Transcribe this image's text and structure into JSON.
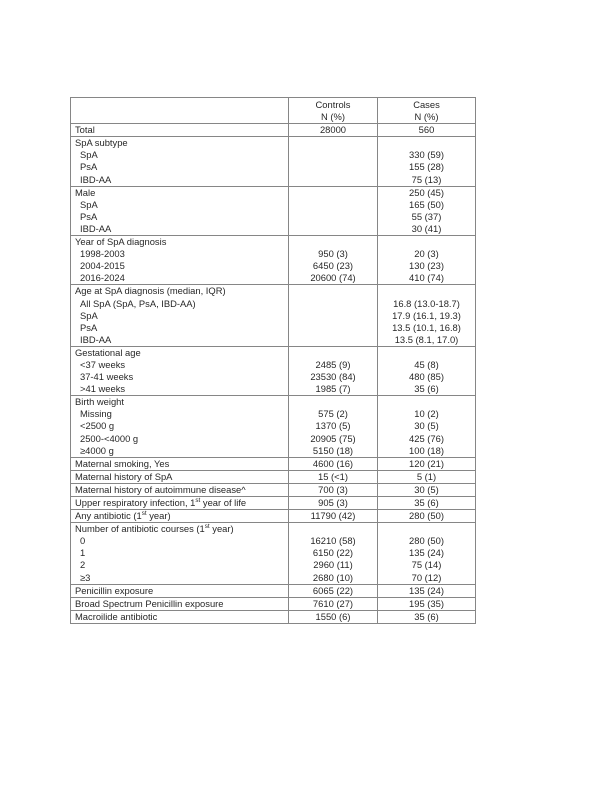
{
  "colors": {
    "page_bg": "#ffffff",
    "border": "#868686",
    "text": "#272727"
  },
  "table": {
    "columns": [
      {
        "key": "label",
        "header": "",
        "subheader": ""
      },
      {
        "key": "controls",
        "header": "Controls",
        "subheader": "N (%)"
      },
      {
        "key": "cases",
        "header": "Cases",
        "subheader": "N (%)"
      }
    ],
    "rows": [
      {
        "label": "Total",
        "controls": "28000",
        "cases": "560",
        "indent": 0,
        "section_start": true
      },
      {
        "label": "SpA subtype",
        "controls": "",
        "cases": "",
        "indent": 0,
        "section_start": true
      },
      {
        "label": "SpA",
        "controls": "",
        "cases": "330 (59)",
        "indent": 1,
        "section_start": false
      },
      {
        "label": "PsA",
        "controls": "",
        "cases": "155 (28)",
        "indent": 1,
        "section_start": false
      },
      {
        "label": "IBD-AA",
        "controls": "",
        "cases": "75 (13)",
        "indent": 1,
        "section_start": false
      },
      {
        "label": "Male",
        "controls": "",
        "cases": "250 (45)",
        "indent": 0,
        "section_start": true
      },
      {
        "label": "SpA",
        "controls": "",
        "cases": "165 (50)",
        "indent": 1,
        "section_start": false
      },
      {
        "label": "PsA",
        "controls": "",
        "cases": "55 (37)",
        "indent": 1,
        "section_start": false
      },
      {
        "label": "IBD-AA",
        "controls": "",
        "cases": "30 (41)",
        "indent": 1,
        "section_start": false
      },
      {
        "label": "Year of SpA diagnosis",
        "controls": "",
        "cases": "",
        "indent": 0,
        "section_start": true
      },
      {
        "label": "1998-2003",
        "controls": "950 (3)",
        "cases": "20 (3)",
        "indent": 1,
        "section_start": false
      },
      {
        "label": "2004-2015",
        "controls": "6450 (23)",
        "cases": "130 (23)",
        "indent": 1,
        "section_start": false
      },
      {
        "label": "2016-2024",
        "controls": "20600 (74)",
        "cases": "410 (74)",
        "indent": 1,
        "section_start": false
      },
      {
        "label": "Age at SpA diagnosis (median, IQR)",
        "controls": "",
        "cases": "",
        "indent": 0,
        "section_start": true
      },
      {
        "label": "All SpA (SpA, PsA, IBD-AA)",
        "controls": "",
        "cases": "16.8 (13.0-18.7)",
        "indent": 1,
        "section_start": false
      },
      {
        "label": "SpA",
        "controls": "",
        "cases": "17.9 (16.1, 19.3)",
        "indent": 1,
        "section_start": false
      },
      {
        "label": "PsA",
        "controls": "",
        "cases": "13.5 (10.1, 16.8)",
        "indent": 1,
        "section_start": false
      },
      {
        "label": "IBD-AA",
        "controls": "",
        "cases": "13.5 (8.1, 17.0)",
        "indent": 1,
        "section_start": false
      },
      {
        "label": "Gestational age",
        "controls": "",
        "cases": "",
        "indent": 0,
        "section_start": true
      },
      {
        "label": "<37 weeks",
        "controls": "2485 (9)",
        "cases": "45 (8)",
        "indent": 1,
        "section_start": false
      },
      {
        "label": "37-41 weeks",
        "controls": "23530 (84)",
        "cases": "480 (85)",
        "indent": 1,
        "section_start": false
      },
      {
        "label": ">41 weeks",
        "controls": "1985 (7)",
        "cases": "35 (6)",
        "indent": 1,
        "section_start": false
      },
      {
        "label": "Birth weight",
        "controls": "",
        "cases": "",
        "indent": 0,
        "section_start": true
      },
      {
        "label": "Missing",
        "controls": "575 (2)",
        "cases": "10 (2)",
        "indent": 1,
        "section_start": false
      },
      {
        "label": "<2500 g",
        "controls": "1370 (5)",
        "cases": "30 (5)",
        "indent": 1,
        "section_start": false
      },
      {
        "label": "2500-<4000 g",
        "controls": "20905 (75)",
        "cases": "425 (76)",
        "indent": 1,
        "section_start": false
      },
      {
        "label": "≥4000 g",
        "controls": "5150 (18)",
        "cases": "100 (18)",
        "indent": 1,
        "section_start": false
      },
      {
        "label": "Maternal smoking, Yes",
        "controls": "4600 (16)",
        "cases": "120 (21)",
        "indent": 0,
        "section_start": true
      },
      {
        "label": "Maternal history of SpA",
        "controls": "15 (<1)",
        "cases": "5 (1)",
        "indent": 0,
        "section_start": true
      },
      {
        "label": "Maternal history of autoimmune disease^",
        "controls": "700 (3)",
        "cases": "30 (5)",
        "indent": 0,
        "section_start": true
      },
      {
        "label": [
          "Upper respiratory infection, 1",
          {
            "sup": "st"
          },
          " year of life"
        ],
        "controls": "905 (3)",
        "cases": "35 (6)",
        "indent": 0,
        "section_start": true
      },
      {
        "label": [
          "Any antibiotic (1",
          {
            "sup": "st"
          },
          " year)"
        ],
        "controls": "11790 (42)",
        "cases": "280 (50)",
        "indent": 0,
        "section_start": true
      },
      {
        "label": [
          "Number of antibiotic courses (1",
          {
            "sup": "st"
          },
          " year)"
        ],
        "controls": "",
        "cases": "",
        "indent": 0,
        "section_start": true
      },
      {
        "label": "0",
        "controls": "16210 (58)",
        "cases": "280 (50)",
        "indent": 1,
        "section_start": false
      },
      {
        "label": "1",
        "controls": "6150 (22)",
        "cases": "135 (24)",
        "indent": 1,
        "section_start": false
      },
      {
        "label": "2",
        "controls": "2960 (11)",
        "cases": "75 (14)",
        "indent": 1,
        "section_start": false
      },
      {
        "label": "≥3",
        "controls": "2680 (10)",
        "cases": "70 (12)",
        "indent": 1,
        "section_start": false
      },
      {
        "label": "Penicillin exposure",
        "controls": "6065 (22)",
        "cases": "135 (24)",
        "indent": 0,
        "section_start": true
      },
      {
        "label": "Broad Spectrum Penicillin exposure",
        "controls": "7610 (27)",
        "cases": "195 (35)",
        "indent": 0,
        "section_start": true
      },
      {
        "label": "Macroilide antibiotic",
        "controls": "1550 (6)",
        "cases": "35 (6)",
        "indent": 0,
        "section_start": true
      }
    ]
  }
}
